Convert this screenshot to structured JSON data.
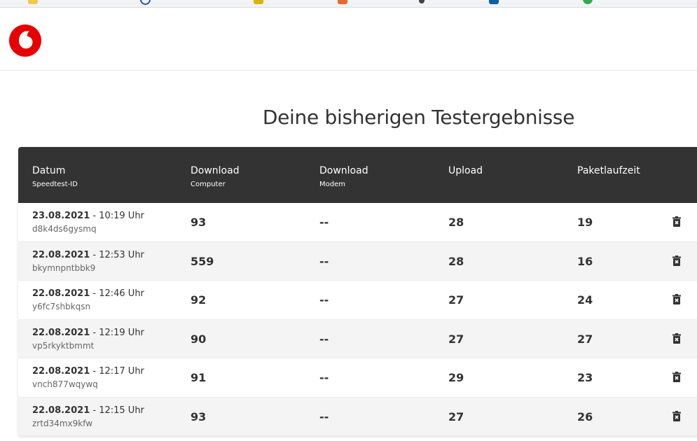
{
  "page": {
    "title": "Deine bisherigen Testergebnisse"
  },
  "brand": {
    "logo_icon": "vodafone-logo-icon",
    "color": "#e60000"
  },
  "table": {
    "headers": [
      {
        "label": "Datum",
        "sub": "Speedtest-ID"
      },
      {
        "label": "Download",
        "sub": "Computer"
      },
      {
        "label": "Download",
        "sub": "Modem"
      },
      {
        "label": "Upload",
        "sub": ""
      },
      {
        "label": "Paketlaufzeit",
        "sub": ""
      }
    ],
    "rows": [
      {
        "date": "23.08.2021",
        "time": " - 10:19 Uhr",
        "id": "d8k4ds6gysmq",
        "download_computer": "93",
        "download_modem": "--",
        "upload": "28",
        "latency": "19"
      },
      {
        "date": "22.08.2021",
        "time": " - 12:53 Uhr",
        "id": "bkymnpntbbk9",
        "download_computer": "559",
        "download_modem": "--",
        "upload": "28",
        "latency": "16"
      },
      {
        "date": "22.08.2021",
        "time": " - 12:46 Uhr",
        "id": "y6fc7shbkqsn",
        "download_computer": "92",
        "download_modem": "--",
        "upload": "27",
        "latency": "24"
      },
      {
        "date": "22.08.2021",
        "time": " - 12:19 Uhr",
        "id": "vp5rkyktbmmt",
        "download_computer": "90",
        "download_modem": "--",
        "upload": "27",
        "latency": "27"
      },
      {
        "date": "22.08.2021",
        "time": " - 12:17 Uhr",
        "id": "vnch877wqywq",
        "download_computer": "91",
        "download_modem": "--",
        "upload": "29",
        "latency": "23"
      },
      {
        "date": "22.08.2021",
        "time": " - 12:15 Uhr",
        "id": "zrtd34mx9kfw",
        "download_computer": "93",
        "download_modem": "--",
        "upload": "27",
        "latency": "26"
      }
    ],
    "delete_icon": "trash-icon"
  }
}
